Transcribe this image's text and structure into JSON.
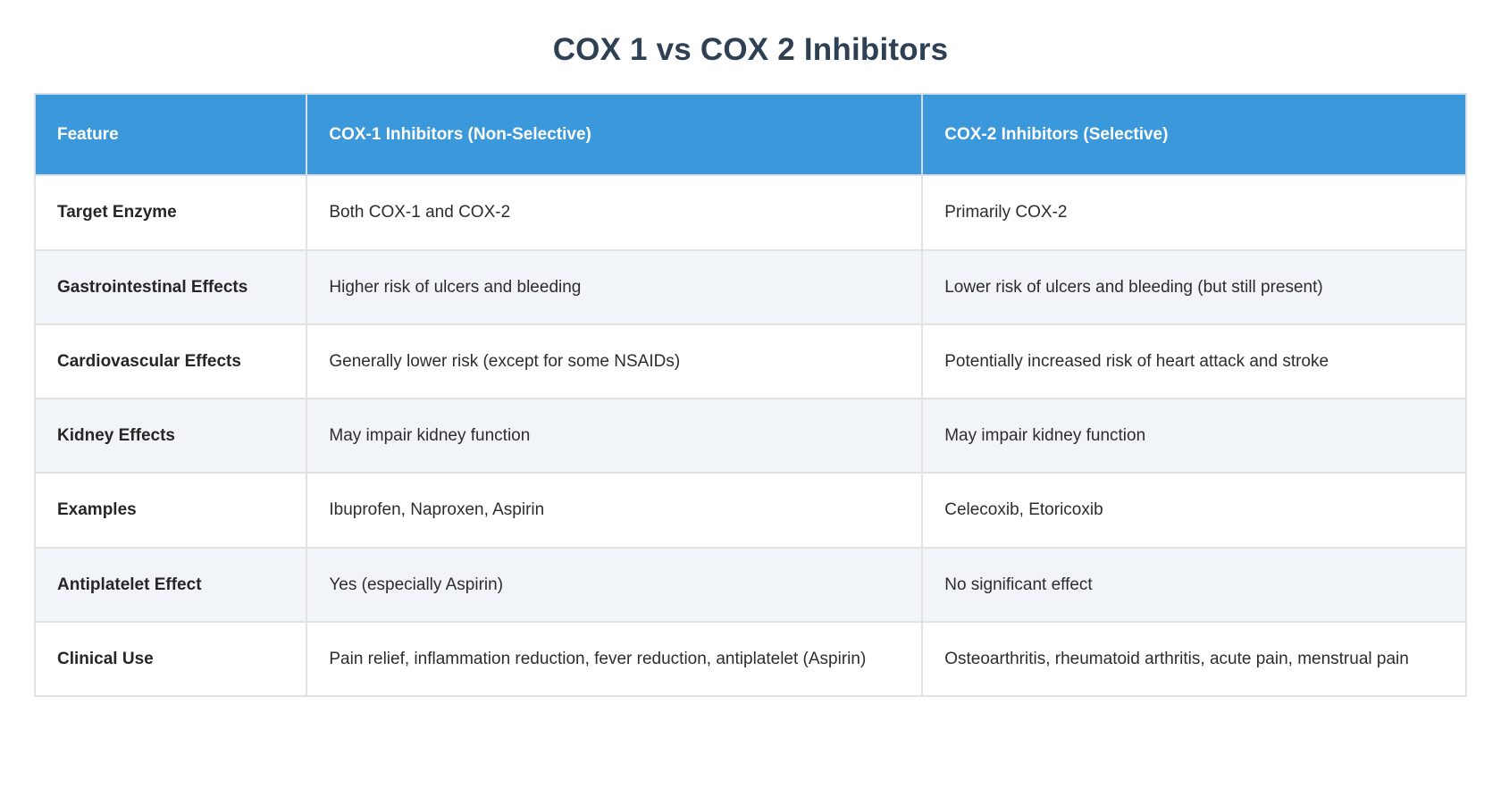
{
  "page": {
    "title": "COX 1 vs COX 2 Inhibitors"
  },
  "colors": {
    "header_bg": "#3b98db",
    "header_text": "#ffffff",
    "title_text": "#2e4053",
    "row_alt_bg": "#f1f4f8",
    "border": "#e2e2e2",
    "body_text": "#2d2d2d"
  },
  "table": {
    "columns": [
      "Feature",
      "COX-1 Inhibitors (Non-Selective)",
      "COX-2 Inhibitors (Selective)"
    ],
    "rows": [
      {
        "feature": "Target Enzyme",
        "cox1": "Both COX-1 and COX-2",
        "cox2": "Primarily COX-2"
      },
      {
        "feature": "Gastrointestinal Effects",
        "cox1": "Higher risk of ulcers and bleeding",
        "cox2": "Lower risk of ulcers and bleeding (but still present)"
      },
      {
        "feature": "Cardiovascular Effects",
        "cox1": "Generally lower risk (except for some NSAIDs)",
        "cox2": "Potentially increased risk of heart attack and stroke"
      },
      {
        "feature": "Kidney Effects",
        "cox1": "May impair kidney function",
        "cox2": "May impair kidney function"
      },
      {
        "feature": "Examples",
        "cox1": "Ibuprofen, Naproxen, Aspirin",
        "cox2": "Celecoxib, Etoricoxib"
      },
      {
        "feature": "Antiplatelet Effect",
        "cox1": "Yes (especially Aspirin)",
        "cox2": "No significant effect"
      },
      {
        "feature": "Clinical Use",
        "cox1": "Pain relief, inflammation reduction, fever reduction, antiplatelet (Aspirin)",
        "cox2": "Osteoarthritis, rheumatoid arthritis, acute pain, menstrual pain"
      }
    ]
  }
}
